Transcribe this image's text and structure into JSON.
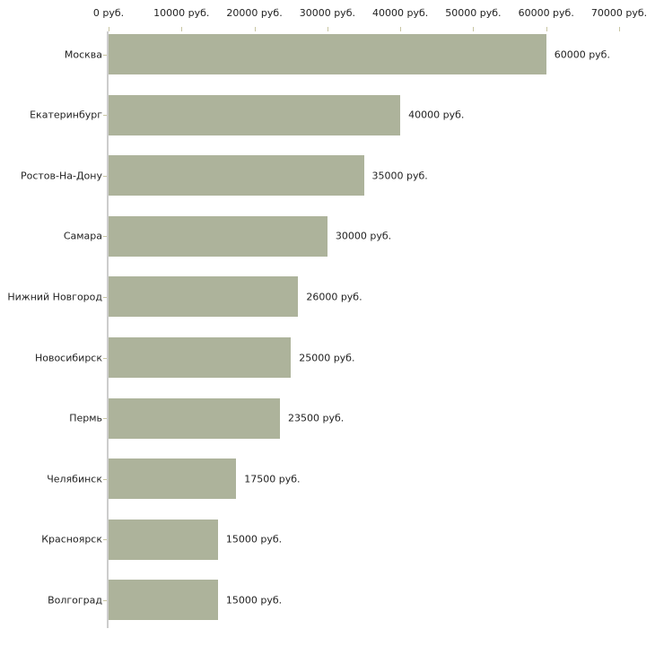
{
  "chart_data": {
    "type": "bar",
    "orientation": "horizontal",
    "title": "",
    "xlabel": "",
    "ylabel": "",
    "unit": "руб.",
    "xlim": [
      0,
      70000
    ],
    "grid": false,
    "legend": "none",
    "categories": [
      "Москва",
      "Екатеринбург",
      "Ростов-На-Дону",
      "Самара",
      "Нижний Новгород",
      "Новосибирск",
      "Пермь",
      "Челябинск",
      "Красноярск",
      "Волгоград"
    ],
    "values": [
      60000,
      40000,
      35000,
      30000,
      26000,
      25000,
      23500,
      17500,
      15000,
      15000
    ],
    "value_labels": [
      "60000 руб.",
      "40000 руб.",
      "35000 руб.",
      "30000 руб.",
      "26000 руб.",
      "25000 руб.",
      "23500 руб.",
      "17500 руб.",
      "15000 руб.",
      "15000 руб."
    ],
    "x_ticks": [
      "0 руб.",
      "10000 руб.",
      "20000 руб.",
      "30000 руб.",
      "40000 руб.",
      "50000 руб.",
      "60000 руб.",
      "70000 руб."
    ],
    "x_tick_values": [
      0,
      10000,
      20000,
      30000,
      40000,
      50000,
      60000,
      70000
    ],
    "colors": {
      "bar": "#adb39b",
      "axis": "#cdcdcd",
      "tick": "#c8c5a2",
      "text": "#222222",
      "background": "#ffffff"
    }
  }
}
